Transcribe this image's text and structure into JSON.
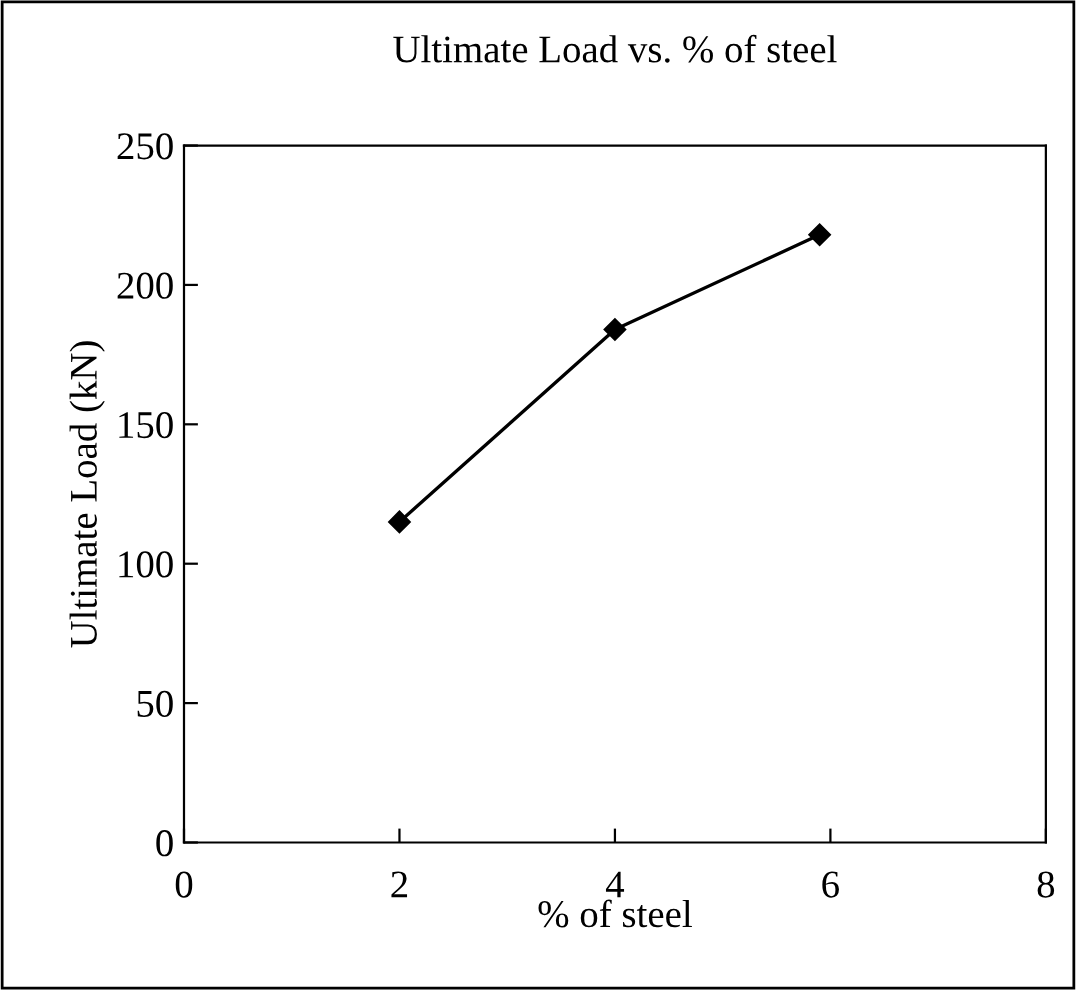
{
  "chart_data": {
    "type": "line",
    "title": "Ultimate Load vs. % of steel",
    "xlabel": "% of steel",
    "ylabel": "Ultimate Load (kN)",
    "x": [
      2,
      4,
      5.9
    ],
    "series": [
      {
        "color": "#000000",
        "values": [
          115,
          184,
          218
        ]
      }
    ],
    "xlim": [
      0,
      8
    ],
    "xticks": [
      0,
      2,
      4,
      6,
      8
    ],
    "ylim": [
      0,
      250
    ],
    "yticks": [
      0,
      50,
      100,
      150,
      200,
      250
    ],
    "marker": "diamond",
    "line_style": "solid",
    "grid": false,
    "legend": false
  }
}
